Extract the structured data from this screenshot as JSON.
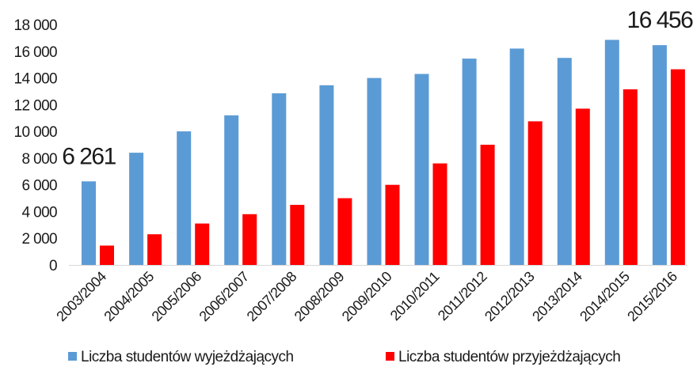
{
  "chart_data": {
    "type": "bar",
    "title": "",
    "xlabel": "",
    "ylabel": "",
    "ylim": [
      0,
      18000
    ],
    "yticks": [
      0,
      2000,
      4000,
      6000,
      8000,
      10000,
      12000,
      14000,
      16000,
      18000
    ],
    "ytick_labels": [
      "0",
      "2 000",
      "4 000",
      "6 000",
      "8 000",
      "10 000",
      "12 000",
      "14 000",
      "16 000",
      "18 000"
    ],
    "grid": false,
    "legend_position": "bottom",
    "categories": [
      "2003/2004",
      "2004/2005",
      "2005/2006",
      "2006/2007",
      "2007/2008",
      "2008/2009",
      "2009/2010",
      "2010/2011",
      "2011/2012",
      "2012/2013",
      "2013/2014",
      "2014/2015",
      "2015/2016"
    ],
    "series": [
      {
        "name": "Liczba studentów wyjeżdżających",
        "color": "#5b9bd5",
        "values": [
          6261,
          8400,
          10000,
          11200,
          12850,
          13450,
          14000,
          14300,
          15450,
          16200,
          15500,
          16850,
          16456
        ]
      },
      {
        "name": "Liczba studentów przyjeżdżających",
        "color": "#ff0000",
        "values": [
          1450,
          2300,
          3100,
          3800,
          4500,
          5000,
          6000,
          7600,
          9000,
          10750,
          11700,
          13150,
          14650
        ]
      }
    ],
    "annotations": [
      {
        "series": 0,
        "index": 0,
        "text": "6 261"
      },
      {
        "series": 0,
        "index": 12,
        "text": "16 456"
      }
    ]
  }
}
